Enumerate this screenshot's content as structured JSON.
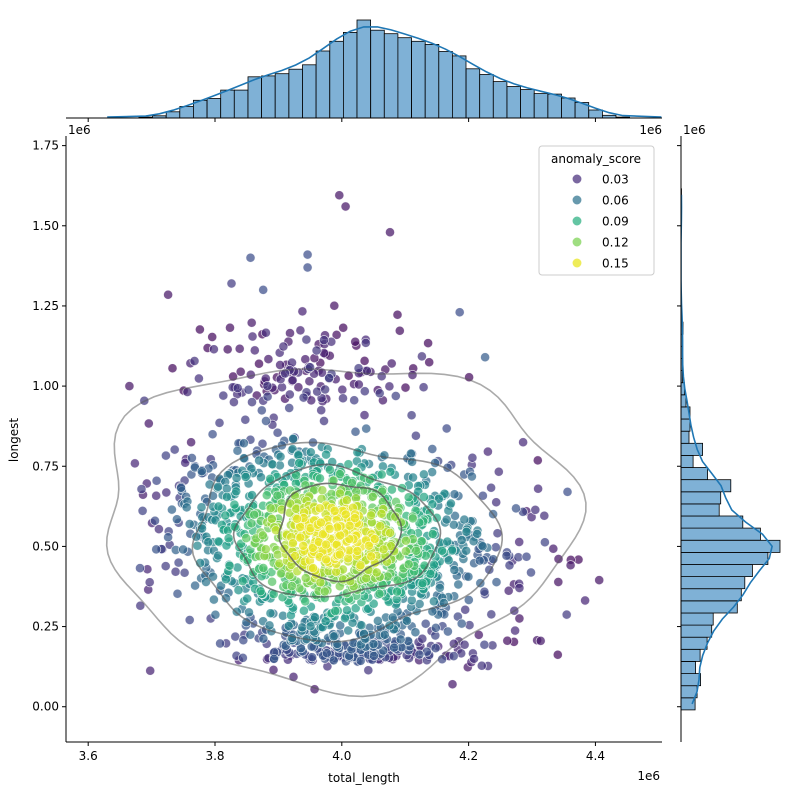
{
  "chart_data": {
    "type": "scatter",
    "subtype": "jointplot",
    "title": "",
    "xlabel": "total_length",
    "ylabel": "longest",
    "x_exponent_label": "1e6",
    "y_exponent_label": "1e6",
    "top_hist_x_exponent_left": "1e6",
    "top_hist_x_exponent_right": "1e6",
    "xlim": [
      3.565,
      4.505
    ],
    "ylim": [
      -0.11,
      1.78
    ],
    "x_scale_factor": 1000000,
    "y_scale_factor": 1000000,
    "x_ticks": [
      3.6,
      3.8,
      4.0,
      4.2,
      4.4
    ],
    "x_tick_labels": [
      "3.6",
      "3.8",
      "4.0",
      "4.2",
      "4.4"
    ],
    "y_ticks": [
      0.0,
      0.25,
      0.5,
      0.75,
      1.0,
      1.25,
      1.5,
      1.75
    ],
    "y_tick_labels": [
      "0.00",
      "0.25",
      "0.50",
      "0.75",
      "1.00",
      "1.25",
      "1.50",
      "1.75"
    ],
    "grid": false,
    "legend": {
      "title": "anomaly_score",
      "placement": "top-right",
      "entries": [
        {
          "label": "0.03",
          "color": "#472d7b"
        },
        {
          "label": "0.06",
          "color": "#2c728e"
        },
        {
          "label": "0.09",
          "color": "#28ae80"
        },
        {
          "label": "0.12",
          "color": "#7ad151"
        },
        {
          "label": "0.15",
          "color": "#e7e419"
        }
      ]
    },
    "colormap": "viridis",
    "color_range": [
      0.0,
      0.17
    ],
    "point_count": 1800,
    "highlight_points": [
      {
        "x": 3.665,
        "y": 1.0,
        "score": 0.01
      },
      {
        "x": 3.996,
        "y": 1.595,
        "score": 0.01
      },
      {
        "x": 4.006,
        "y": 1.56,
        "score": 0.01
      },
      {
        "x": 4.076,
        "y": 1.48,
        "score": 0.01
      },
      {
        "x": 3.726,
        "y": 1.285,
        "score": 0.01
      },
      {
        "x": 3.946,
        "y": 1.41,
        "score": 0.04
      },
      {
        "x": 3.946,
        "y": 1.37,
        "score": 0.04
      },
      {
        "x": 3.856,
        "y": 1.4,
        "score": 0.04
      },
      {
        "x": 3.826,
        "y": 1.32,
        "score": 0.03
      },
      {
        "x": 3.876,
        "y": 1.3,
        "score": 0.04
      },
      {
        "x": 4.186,
        "y": 1.23,
        "score": 0.04
      },
      {
        "x": 4.406,
        "y": 0.395,
        "score": 0.01
      },
      {
        "x": 4.356,
        "y": 0.67,
        "score": 0.04
      },
      {
        "x": 4.226,
        "y": 1.09,
        "score": 0.05
      },
      {
        "x": 4.286,
        "y": 0.825,
        "score": 0.02
      }
    ],
    "kde_contour_levels": 4,
    "contour_color": "#555555",
    "marginal_x_hist": {
      "bin_edges_start": 3.68,
      "bin_width": 0.0215,
      "counts": [
        2,
        5,
        14,
        26,
        40,
        44,
        63,
        63,
        93,
        95,
        100,
        110,
        120,
        151,
        173,
        193,
        221,
        198,
        190,
        181,
        173,
        166,
        150,
        140,
        111,
        98,
        82,
        71,
        64,
        55,
        54,
        45,
        35,
        18,
        6,
        2
      ],
      "color": "#7fb1d6",
      "edge_color": "#000000",
      "kde_color": "#1f77b4"
    },
    "marginal_y_hist": {
      "bin_edges_start": -0.01,
      "bin_width": 0.0378,
      "counts": [
        28,
        32,
        39,
        29,
        38,
        52,
        61,
        64,
        112,
        120,
        127,
        142,
        173,
        197,
        158,
        123,
        76,
        79,
        99,
        53,
        24,
        43,
        16,
        18,
        18,
        10,
        7,
        3,
        3,
        3,
        3,
        4,
        1,
        1,
        0,
        0,
        0,
        0,
        0,
        0,
        1,
        1,
        1
      ],
      "color": "#7fb1d6",
      "edge_color": "#000000",
      "kde_color": "#1f77b4"
    }
  }
}
